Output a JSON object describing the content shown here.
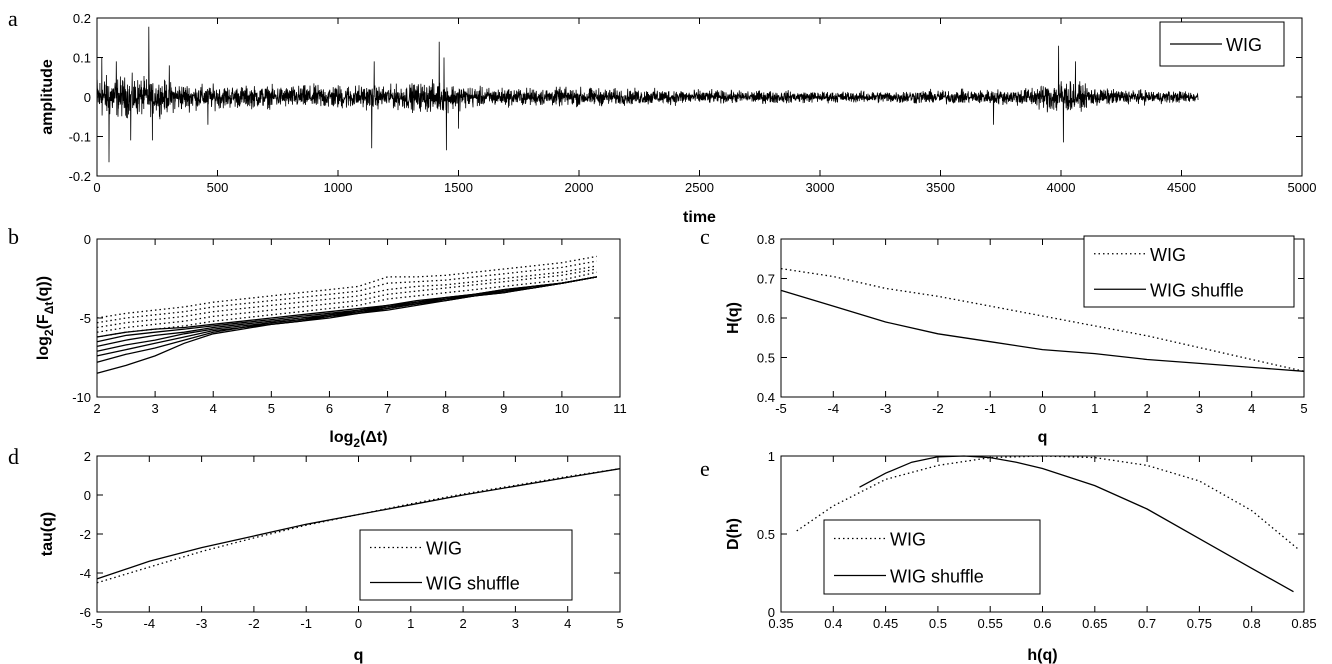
{
  "chart_data": [
    {
      "panel": "a",
      "type": "line",
      "xlabel": "time",
      "ylabel": "amplitude",
      "xlim": [
        0,
        5000
      ],
      "ylim": [
        -0.2,
        0.2
      ],
      "xticks": [
        "0",
        "500",
        "1000",
        "1500",
        "2000",
        "2500",
        "3000",
        "3500",
        "4000",
        "4500",
        "5000"
      ],
      "yticks": [
        "-0.2",
        "-0.1",
        "0",
        "0.1",
        "0.2"
      ],
      "legend_position": "top-right",
      "series": [
        {
          "name": "WIG",
          "style": "solid",
          "n_points": 4570,
          "envelope": {
            "x": [
              0,
              200,
              400,
              600,
              800,
              1000,
              1200,
              1400,
              1600,
              1800,
              2000,
              2200,
              2400,
              2600,
              2800,
              3000,
              3200,
              3400,
              3600,
              3800,
              3900,
              4000,
              4100,
              4200,
              4400,
              4570
            ],
            "amp": [
              0.07,
              0.06,
              0.04,
              0.035,
              0.035,
              0.04,
              0.035,
              0.05,
              0.03,
              0.028,
              0.03,
              0.025,
              0.025,
              0.02,
              0.02,
              0.018,
              0.018,
              0.022,
              0.022,
              0.025,
              0.035,
              0.06,
              0.035,
              0.025,
              0.02,
              0.018
            ]
          },
          "spikes": [
            [
              20,
              0.1
            ],
            [
              50,
              -0.165
            ],
            [
              80,
              0.09
            ],
            [
              140,
              -0.11
            ],
            [
              215,
              0.178
            ],
            [
              230,
              -0.11
            ],
            [
              300,
              0.08
            ],
            [
              460,
              -0.07
            ],
            [
              1140,
              -0.13
            ],
            [
              1150,
              0.09
            ],
            [
              1420,
              0.14
            ],
            [
              1440,
              0.1
            ],
            [
              1450,
              -0.135
            ],
            [
              1500,
              -0.08
            ],
            [
              3720,
              -0.07
            ],
            [
              3990,
              0.13
            ],
            [
              4010,
              -0.115
            ],
            [
              4060,
              0.09
            ]
          ]
        }
      ]
    },
    {
      "panel": "b",
      "type": "line",
      "xlabel_main": "log",
      "xlabel_sub": "2",
      "xlabel_rest": "(Δt)",
      "ylabel_main": "log",
      "ylabel_sub1": "2",
      "ylabel_mid": "(F",
      "ylabel_sub2": "Δt",
      "ylabel_rest": "(q))",
      "xlim": [
        2,
        11
      ],
      "ylim": [
        -10,
        0
      ],
      "xticks": [
        "2",
        "3",
        "4",
        "5",
        "6",
        "7",
        "8",
        "9",
        "10",
        "11"
      ],
      "yticks": [
        "-10",
        "-5",
        "0"
      ],
      "x": [
        2,
        2.5,
        3,
        3.5,
        4,
        4.5,
        5,
        5.5,
        6,
        6.5,
        7,
        7.5,
        8,
        8.5,
        9,
        9.5,
        10,
        10.6
      ],
      "series": [
        {
          "style": "dotted",
          "values": [
            -5.0,
            -4.7,
            -4.5,
            -4.3,
            -4.0,
            -3.8,
            -3.6,
            -3.4,
            -3.2,
            -3.0,
            -2.4,
            -2.4,
            -2.3,
            -2.1,
            -1.9,
            -1.7,
            -1.5,
            -1.1
          ]
        },
        {
          "style": "dotted",
          "values": [
            -5.3,
            -5.0,
            -4.8,
            -4.6,
            -4.3,
            -4.1,
            -3.9,
            -3.7,
            -3.5,
            -3.3,
            -2.8,
            -2.7,
            -2.6,
            -2.4,
            -2.2,
            -2.0,
            -1.8,
            -1.4
          ]
        },
        {
          "style": "dotted",
          "values": [
            -5.6,
            -5.3,
            -5.1,
            -4.9,
            -4.6,
            -4.4,
            -4.2,
            -4.0,
            -3.8,
            -3.6,
            -3.2,
            -3.0,
            -2.9,
            -2.7,
            -2.5,
            -2.3,
            -2.1,
            -1.7
          ]
        },
        {
          "style": "dotted",
          "values": [
            -5.9,
            -5.6,
            -5.4,
            -5.2,
            -4.9,
            -4.7,
            -4.5,
            -4.3,
            -4.1,
            -3.9,
            -3.5,
            -3.3,
            -3.1,
            -2.9,
            -2.7,
            -2.5,
            -2.3,
            -1.9
          ]
        },
        {
          "style": "dotted",
          "values": [
            -6.2,
            -5.9,
            -5.7,
            -5.5,
            -5.2,
            -5.0,
            -4.8,
            -4.6,
            -4.4,
            -4.2,
            -3.8,
            -3.6,
            -3.4,
            -3.2,
            -3.0,
            -2.8,
            -2.6,
            -2.1
          ]
        },
        {
          "style": "solid",
          "values": [
            -6.2,
            -5.9,
            -5.7,
            -5.6,
            -5.4,
            -5.2,
            -5.0,
            -4.8,
            -4.6,
            -4.4,
            -4.2,
            -3.9,
            -3.7,
            -3.5,
            -3.2,
            -3.0,
            -2.8,
            -2.4
          ]
        },
        {
          "style": "solid",
          "values": [
            -6.5,
            -6.1,
            -5.9,
            -5.7,
            -5.5,
            -5.3,
            -5.1,
            -4.9,
            -4.7,
            -4.5,
            -4.2,
            -4.0,
            -3.7,
            -3.5,
            -3.2,
            -3.0,
            -2.8,
            -2.4
          ]
        },
        {
          "style": "solid",
          "values": [
            -6.8,
            -6.4,
            -6.1,
            -5.9,
            -5.6,
            -5.4,
            -5.2,
            -5.0,
            -4.8,
            -4.5,
            -4.3,
            -4.0,
            -3.8,
            -3.5,
            -3.3,
            -3.0,
            -2.8,
            -2.4
          ]
        },
        {
          "style": "solid",
          "values": [
            -7.1,
            -6.7,
            -6.4,
            -6.0,
            -5.7,
            -5.5,
            -5.3,
            -5.1,
            -4.8,
            -4.6,
            -4.3,
            -4.1,
            -3.8,
            -3.6,
            -3.3,
            -3.1,
            -2.8,
            -2.4
          ]
        },
        {
          "style": "solid",
          "values": [
            -7.4,
            -7.0,
            -6.6,
            -6.2,
            -5.8,
            -5.6,
            -5.3,
            -5.1,
            -4.9,
            -4.6,
            -4.4,
            -4.1,
            -3.8,
            -3.6,
            -3.3,
            -3.1,
            -2.8,
            -2.4
          ]
        },
        {
          "style": "solid",
          "values": [
            -7.8,
            -7.3,
            -6.9,
            -6.4,
            -5.9,
            -5.6,
            -5.4,
            -5.2,
            -4.9,
            -4.7,
            -4.4,
            -4.1,
            -3.9,
            -3.6,
            -3.4,
            -3.1,
            -2.8,
            -2.4
          ]
        },
        {
          "style": "solid",
          "values": [
            -8.5,
            -8.0,
            -7.4,
            -6.6,
            -6.0,
            -5.7,
            -5.4,
            -5.2,
            -5.0,
            -4.7,
            -4.5,
            -4.2,
            -3.9,
            -3.6,
            -3.4,
            -3.1,
            -2.8,
            -2.4
          ]
        }
      ]
    },
    {
      "panel": "c",
      "type": "line",
      "xlabel": "q",
      "ylabel": "H(q)",
      "xlim": [
        -5,
        5
      ],
      "ylim": [
        0.4,
        0.8
      ],
      "xticks": [
        "-5",
        "-4",
        "-3",
        "-2",
        "-1",
        "0",
        "1",
        "2",
        "3",
        "4",
        "5"
      ],
      "yticks": [
        "0.4",
        "0.5",
        "0.6",
        "0.7",
        "0.8"
      ],
      "legend_position": "top-right",
      "x": [
        -5,
        -4,
        -3,
        -2,
        -1,
        0,
        1,
        2,
        3,
        4,
        5
      ],
      "series": [
        {
          "name": "WIG",
          "style": "dotted",
          "values": [
            0.725,
            0.705,
            0.675,
            0.655,
            0.63,
            0.605,
            0.58,
            0.555,
            0.525,
            0.495,
            0.465
          ]
        },
        {
          "name": "WIG shuffle",
          "style": "solid",
          "values": [
            0.67,
            0.63,
            0.59,
            0.56,
            0.54,
            0.52,
            0.51,
            0.495,
            0.485,
            0.475,
            0.465
          ]
        }
      ]
    },
    {
      "panel": "d",
      "type": "line",
      "xlabel": "q",
      "ylabel": "tau(q)",
      "xlim": [
        -5,
        5
      ],
      "ylim": [
        -6,
        2
      ],
      "xticks": [
        "-5",
        "-4",
        "-3",
        "-2",
        "-1",
        "0",
        "1",
        "2",
        "3",
        "4",
        "5"
      ],
      "yticks": [
        "-6",
        "-4",
        "-2",
        "0",
        "2"
      ],
      "legend_position": "bottom-right",
      "x": [
        -5,
        -4,
        -3,
        -2,
        -1,
        0,
        1,
        2,
        3,
        4,
        5
      ],
      "series": [
        {
          "name": "WIG",
          "style": "dotted",
          "values": [
            -4.5,
            -3.7,
            -2.9,
            -2.2,
            -1.55,
            -1.0,
            -0.45,
            0.05,
            0.5,
            0.95,
            1.35
          ]
        },
        {
          "name": "WIG shuffle",
          "style": "solid",
          "values": [
            -4.3,
            -3.4,
            -2.7,
            -2.1,
            -1.5,
            -1.0,
            -0.5,
            0.0,
            0.45,
            0.9,
            1.35
          ]
        }
      ]
    },
    {
      "panel": "e",
      "type": "line",
      "xlabel": "h(q)",
      "ylabel": "D(h)",
      "xlim": [
        0.35,
        0.85
      ],
      "ylim": [
        0,
        1
      ],
      "xticks": [
        "0.35",
        "0.4",
        "0.45",
        "0.5",
        "0.55",
        "0.6",
        "0.65",
        "0.7",
        "0.75",
        "0.8",
        "0.85"
      ],
      "yticks": [
        "0",
        "0.5",
        "1"
      ],
      "legend_position": "bottom-left",
      "series": [
        {
          "name": "WIG",
          "style": "dotted",
          "x": [
            0.365,
            0.4,
            0.45,
            0.5,
            0.55,
            0.6,
            0.65,
            0.7,
            0.75,
            0.8,
            0.845
          ],
          "y": [
            0.52,
            0.68,
            0.85,
            0.94,
            0.99,
            1.0,
            0.99,
            0.94,
            0.84,
            0.65,
            0.4
          ]
        },
        {
          "name": "WIG shuffle",
          "style": "solid",
          "x": [
            0.425,
            0.45,
            0.475,
            0.5,
            0.525,
            0.55,
            0.575,
            0.6,
            0.65,
            0.7,
            0.75,
            0.8,
            0.84
          ],
          "y": [
            0.8,
            0.89,
            0.96,
            0.995,
            1.0,
            0.99,
            0.96,
            0.92,
            0.81,
            0.66,
            0.47,
            0.28,
            0.13
          ]
        }
      ]
    }
  ]
}
